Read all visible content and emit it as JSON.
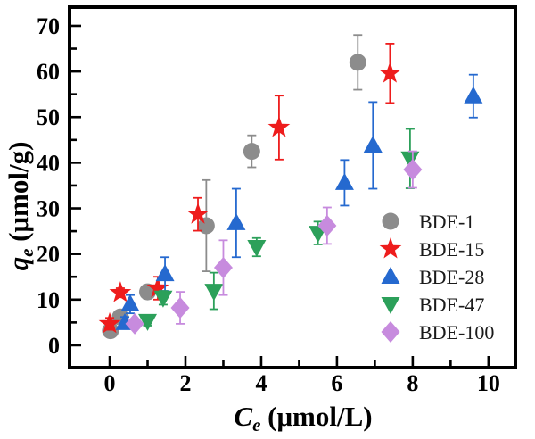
{
  "figure": {
    "background": "#ffffff",
    "frame_color": "#000000"
  },
  "chart_data": {
    "type": "scatter",
    "title": "",
    "xlabel": {
      "variable": "C",
      "subscript": "e",
      "units": " (μmol/L)"
    },
    "ylabel": {
      "variable": "q",
      "subscript": "e",
      "units": " (μmol/g)"
    },
    "xlim": [
      -1.06,
      10.71
    ],
    "ylim": [
      -4.9,
      74.1
    ],
    "x_ticks": [
      {
        "value": 0,
        "label": "0"
      },
      {
        "value": 2,
        "label": "2"
      },
      {
        "value": 4,
        "label": "4"
      },
      {
        "value": 6,
        "label": "6"
      },
      {
        "value": 8,
        "label": "8"
      },
      {
        "value": 10,
        "label": "10"
      }
    ],
    "x_minor_ticks": [
      1,
      3,
      5,
      7,
      9
    ],
    "y_ticks": [
      {
        "value": 0,
        "label": "0"
      },
      {
        "value": 10,
        "label": "10"
      },
      {
        "value": 20,
        "label": "20"
      },
      {
        "value": 30,
        "label": "30"
      },
      {
        "value": 40,
        "label": "40"
      },
      {
        "value": 50,
        "label": "50"
      },
      {
        "value": 60,
        "label": "60"
      },
      {
        "value": 70,
        "label": "70"
      }
    ],
    "y_minor_ticks": [
      5,
      15,
      25,
      35,
      45,
      55,
      65
    ],
    "grid": false,
    "legend": {
      "position": "inside-lower-right",
      "frame": false
    },
    "series": [
      {
        "name": "BDE-1",
        "marker": "circle",
        "color": "#8c8c8c",
        "points": [
          {
            "x": 0.02,
            "y": 3.2,
            "err": 1.2
          },
          {
            "x": 0.28,
            "y": 6.2,
            "err": 1.2
          },
          {
            "x": 1.0,
            "y": 11.7,
            "err": 1.5
          },
          {
            "x": 2.55,
            "y": 26.2,
            "err": 10.0
          },
          {
            "x": 3.75,
            "y": 42.5,
            "err": 3.5
          },
          {
            "x": 6.55,
            "y": 62.0,
            "err": 6.0
          }
        ]
      },
      {
        "name": "BDE-15",
        "marker": "star",
        "color": "#ee1c1c",
        "points": [
          {
            "x": 0.0,
            "y": 4.7,
            "err": 1.3
          },
          {
            "x": 0.28,
            "y": 11.5,
            "err": 1.0
          },
          {
            "x": 1.27,
            "y": 12.5,
            "err": 2.5
          },
          {
            "x": 2.33,
            "y": 28.7,
            "err": 3.6
          },
          {
            "x": 4.47,
            "y": 47.7,
            "err": 7.0
          },
          {
            "x": 7.4,
            "y": 59.6,
            "err": 6.5
          }
        ]
      },
      {
        "name": "BDE-28",
        "marker": "triangle-up",
        "color": "#2569cf",
        "points": [
          {
            "x": 0.4,
            "y": 4.9,
            "err": 1.3
          },
          {
            "x": 0.54,
            "y": 9.0,
            "err": 2.0
          },
          {
            "x": 1.46,
            "y": 15.6,
            "err": 3.7
          },
          {
            "x": 3.34,
            "y": 26.8,
            "err": 7.5
          },
          {
            "x": 6.2,
            "y": 35.6,
            "err": 5.0
          },
          {
            "x": 6.95,
            "y": 43.8,
            "err": 9.5
          },
          {
            "x": 9.6,
            "y": 54.6,
            "err": 4.7
          }
        ]
      },
      {
        "name": "BDE-47",
        "marker": "triangle-down",
        "color": "#2ca05a",
        "points": [
          {
            "x": 1.0,
            "y": 5.3,
            "err": 1.0
          },
          {
            "x": 1.41,
            "y": 10.4,
            "err": 1.5
          },
          {
            "x": 2.75,
            "y": 11.9,
            "err": 4.0
          },
          {
            "x": 3.88,
            "y": 21.5,
            "err": 2.0
          },
          {
            "x": 5.5,
            "y": 24.6,
            "err": 2.5
          },
          {
            "x": 7.93,
            "y": 40.9,
            "err": 6.5
          }
        ]
      },
      {
        "name": "BDE-100",
        "marker": "diamond",
        "color": "#c78bde",
        "points": [
          {
            "x": 0.66,
            "y": 4.7,
            "err": 1.0
          },
          {
            "x": 1.86,
            "y": 8.2,
            "err": 3.5
          },
          {
            "x": 3.0,
            "y": 17.0,
            "err": 6.0
          },
          {
            "x": 5.74,
            "y": 26.2,
            "err": 4.0
          },
          {
            "x": 8.0,
            "y": 38.5,
            "err": 4.0
          }
        ]
      }
    ]
  }
}
